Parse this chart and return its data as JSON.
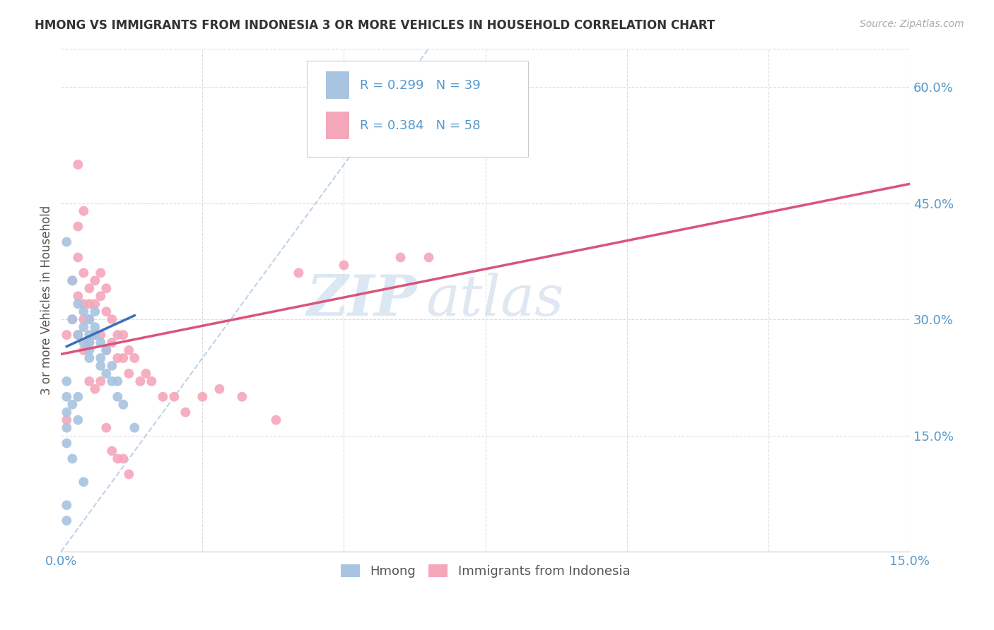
{
  "title": "HMONG VS IMMIGRANTS FROM INDONESIA 3 OR MORE VEHICLES IN HOUSEHOLD CORRELATION CHART",
  "source": "Source: ZipAtlas.com",
  "ylabel": "3 or more Vehicles in Household",
  "xmin": 0.0,
  "xmax": 0.15,
  "ymin": 0.0,
  "ymax": 0.65,
  "yticks_right": [
    0.15,
    0.3,
    0.45,
    0.6
  ],
  "yticklabels_right": [
    "15.0%",
    "30.0%",
    "45.0%",
    "60.0%"
  ],
  "hmong_color": "#a8c4e0",
  "indonesia_color": "#f4a7b9",
  "hmong_line_color": "#3a6fba",
  "indonesia_line_color": "#d9547a",
  "diagonal_color": "#b8cfe8",
  "R_hmong": 0.299,
  "N_hmong": 39,
  "R_indonesia": 0.384,
  "N_indonesia": 58,
  "legend_label_hmong": "Hmong",
  "legend_label_indonesia": "Immigrants from Indonesia",
  "watermark_zip": "ZIP",
  "watermark_atlas": "atlas",
  "hmong_x": [
    0.001,
    0.002,
    0.002,
    0.003,
    0.003,
    0.004,
    0.004,
    0.004,
    0.005,
    0.005,
    0.005,
    0.005,
    0.005,
    0.006,
    0.006,
    0.006,
    0.007,
    0.007,
    0.007,
    0.008,
    0.008,
    0.009,
    0.009,
    0.01,
    0.01,
    0.011,
    0.013,
    0.001,
    0.001,
    0.001,
    0.001,
    0.001,
    0.002,
    0.002,
    0.003,
    0.003,
    0.004,
    0.001,
    0.001
  ],
  "hmong_y": [
    0.4,
    0.35,
    0.3,
    0.32,
    0.28,
    0.31,
    0.29,
    0.27,
    0.3,
    0.28,
    0.27,
    0.26,
    0.25,
    0.31,
    0.29,
    0.28,
    0.27,
    0.25,
    0.24,
    0.26,
    0.23,
    0.24,
    0.22,
    0.22,
    0.2,
    0.19,
    0.16,
    0.22,
    0.2,
    0.18,
    0.16,
    0.14,
    0.19,
    0.12,
    0.2,
    0.17,
    0.09,
    0.06,
    0.04
  ],
  "indonesia_x": [
    0.001,
    0.001,
    0.002,
    0.002,
    0.003,
    0.003,
    0.003,
    0.003,
    0.004,
    0.004,
    0.004,
    0.004,
    0.005,
    0.005,
    0.005,
    0.005,
    0.006,
    0.006,
    0.006,
    0.007,
    0.007,
    0.007,
    0.008,
    0.008,
    0.008,
    0.009,
    0.009,
    0.01,
    0.01,
    0.011,
    0.011,
    0.012,
    0.012,
    0.013,
    0.014,
    0.015,
    0.016,
    0.018,
    0.02,
    0.022,
    0.025,
    0.028,
    0.032,
    0.038,
    0.042,
    0.05,
    0.06,
    0.065,
    0.003,
    0.004,
    0.005,
    0.006,
    0.007,
    0.008,
    0.009,
    0.01,
    0.011,
    0.012
  ],
  "indonesia_y": [
    0.28,
    0.17,
    0.35,
    0.3,
    0.42,
    0.38,
    0.33,
    0.28,
    0.36,
    0.32,
    0.3,
    0.26,
    0.34,
    0.32,
    0.3,
    0.27,
    0.35,
    0.32,
    0.28,
    0.36,
    0.33,
    0.28,
    0.34,
    0.31,
    0.26,
    0.3,
    0.27,
    0.28,
    0.25,
    0.28,
    0.25,
    0.26,
    0.23,
    0.25,
    0.22,
    0.23,
    0.22,
    0.2,
    0.2,
    0.18,
    0.2,
    0.21,
    0.2,
    0.17,
    0.36,
    0.37,
    0.38,
    0.38,
    0.5,
    0.44,
    0.22,
    0.21,
    0.22,
    0.16,
    0.13,
    0.12,
    0.12,
    0.1
  ],
  "indonesia_line_x0": 0.0,
  "indonesia_line_y0": 0.255,
  "indonesia_line_x1": 0.15,
  "indonesia_line_y1": 0.475,
  "hmong_line_x0": 0.001,
  "hmong_line_y0": 0.265,
  "hmong_line_x1": 0.013,
  "hmong_line_y1": 0.305
}
